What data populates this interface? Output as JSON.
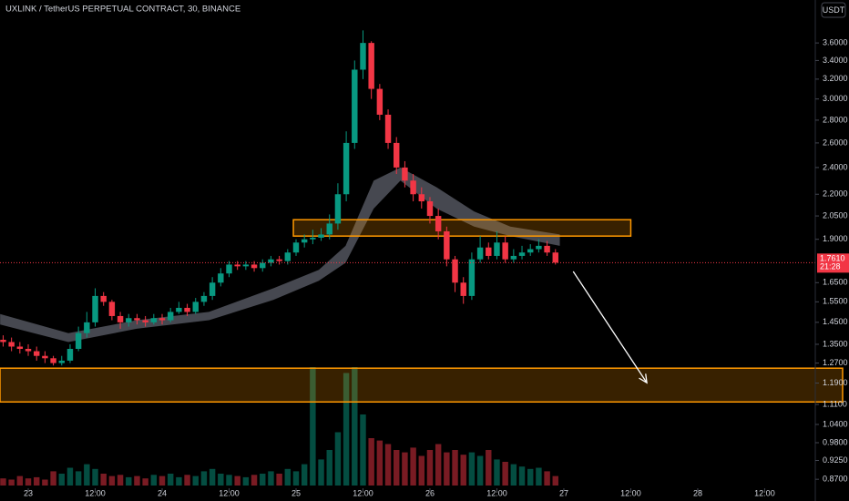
{
  "chart_data": {
    "type": "candlestick",
    "title": "UXLINK / TetherUS PERPETUAL CONTRACT, 30, BINANCE",
    "currency": "USDT",
    "log_scale": true,
    "up_color": "#089981",
    "down_color": "#f23645",
    "ylim": [
      0.845,
      4.14
    ],
    "yticks": [
      {
        "value": 3.6,
        "label": "3.6000"
      },
      {
        "value": 3.4,
        "label": "3.4000"
      },
      {
        "value": 3.2,
        "label": "3.2000"
      },
      {
        "value": 3.0,
        "label": "3.0000"
      },
      {
        "value": 2.8,
        "label": "2.8000"
      },
      {
        "value": 2.6,
        "label": "2.6000"
      },
      {
        "value": 2.4,
        "label": "2.4000"
      },
      {
        "value": 2.2,
        "label": "2.2000"
      },
      {
        "value": 2.05,
        "label": "2.0500"
      },
      {
        "value": 1.9,
        "label": "1.9000"
      },
      {
        "value": 1.65,
        "label": "1.6500"
      },
      {
        "value": 1.55,
        "label": "1.5500"
      },
      {
        "value": 1.45,
        "label": "1.4500"
      },
      {
        "value": 1.35,
        "label": "1.3500"
      },
      {
        "value": 1.27,
        "label": "1.2700"
      },
      {
        "value": 1.19,
        "label": "1.1900"
      },
      {
        "value": 1.11,
        "label": "1.1100"
      },
      {
        "value": 1.04,
        "label": "1.0400"
      },
      {
        "value": 0.98,
        "label": "0.9800"
      },
      {
        "value": 0.925,
        "label": "0.9250"
      },
      {
        "value": 0.87,
        "label": "0.8700"
      }
    ],
    "xlim": [
      22.789,
      28.878
    ],
    "xticks": [
      23,
      {
        "value": 23.5,
        "label": "12:00"
      },
      24,
      {
        "value": 24.5,
        "label": "12:00"
      },
      25,
      {
        "value": 25.5,
        "label": "12:00"
      },
      26,
      {
        "value": 26.5,
        "label": "12:00"
      },
      27,
      {
        "value": 27.5,
        "label": "12:00"
      },
      28,
      {
        "value": 28.5,
        "label": "12:00"
      }
    ],
    "x": [
      22.8125,
      22.875,
      22.9375,
      23,
      23.0625,
      23.125,
      23.1875,
      23.25,
      23.3125,
      23.375,
      23.4375,
      23.5,
      23.5625,
      23.625,
      23.6875,
      23.75,
      23.8125,
      23.875,
      23.9375,
      24,
      24.0625,
      24.125,
      24.1875,
      24.25,
      24.3125,
      24.375,
      24.4375,
      24.5,
      24.5625,
      24.625,
      24.6875,
      24.75,
      24.8125,
      24.875,
      24.9375,
      25,
      25.0625,
      25.125,
      25.1875,
      25.25,
      25.3125,
      25.375,
      25.4375,
      25.5,
      25.5625,
      25.625,
      25.6875,
      25.75,
      25.8125,
      25.875,
      25.9375,
      26,
      26.0625,
      26.125,
      26.1875,
      26.25,
      26.3125,
      26.375,
      26.4375,
      26.5,
      26.5625,
      26.625,
      26.6875,
      26.75,
      26.8125,
      26.875,
      26.9375
    ],
    "open": [
      1.37,
      1.36,
      1.34,
      1.33,
      1.32,
      1.3,
      1.29,
      1.27,
      1.28,
      1.33,
      1.4,
      1.45,
      1.58,
      1.55,
      1.48,
      1.45,
      1.47,
      1.46,
      1.45,
      1.47,
      1.46,
      1.5,
      1.52,
      1.5,
      1.55,
      1.58,
      1.65,
      1.7,
      1.75,
      1.74,
      1.75,
      1.73,
      1.76,
      1.78,
      1.77,
      1.82,
      1.88,
      1.9,
      1.91,
      1.93,
      2.0,
      2.2,
      2.6,
      3.3,
      3.6,
      3.1,
      2.85,
      2.6,
      2.4,
      2.3,
      2.2,
      2.15,
      2.05,
      1.95,
      1.78,
      1.65,
      1.58,
      1.78,
      1.85,
      1.8,
      1.88,
      1.78,
      1.8,
      1.82,
      1.84,
      1.86,
      1.82
    ],
    "high": [
      1.39,
      1.38,
      1.36,
      1.35,
      1.34,
      1.32,
      1.3,
      1.3,
      1.35,
      1.43,
      1.5,
      1.62,
      1.6,
      1.56,
      1.5,
      1.49,
      1.49,
      1.48,
      1.49,
      1.49,
      1.52,
      1.55,
      1.54,
      1.57,
      1.6,
      1.68,
      1.73,
      1.77,
      1.77,
      1.77,
      1.77,
      1.78,
      1.8,
      1.8,
      1.84,
      1.9,
      1.93,
      1.96,
      1.97,
      2.06,
      2.28,
      2.7,
      3.4,
      3.75,
      3.62,
      3.15,
      2.9,
      2.65,
      2.45,
      2.35,
      2.25,
      2.18,
      2.1,
      1.98,
      1.8,
      1.68,
      1.82,
      1.92,
      1.88,
      1.95,
      1.92,
      1.84,
      1.86,
      1.87,
      1.9,
      1.89,
      1.84
    ],
    "low": [
      1.34,
      1.32,
      1.31,
      1.3,
      1.28,
      1.27,
      1.26,
      1.26,
      1.27,
      1.32,
      1.38,
      1.43,
      1.53,
      1.46,
      1.42,
      1.43,
      1.44,
      1.43,
      1.44,
      1.44,
      1.45,
      1.49,
      1.48,
      1.49,
      1.53,
      1.56,
      1.63,
      1.68,
      1.72,
      1.72,
      1.71,
      1.71,
      1.74,
      1.75,
      1.75,
      1.8,
      1.85,
      1.87,
      1.89,
      1.9,
      1.96,
      2.15,
      2.55,
      3.2,
      3.0,
      2.8,
      2.55,
      2.35,
      2.25,
      2.15,
      2.1,
      2.0,
      1.9,
      1.74,
      1.6,
      1.54,
      1.56,
      1.76,
      1.78,
      1.78,
      1.76,
      1.76,
      1.78,
      1.8,
      1.82,
      1.8,
      1.75
    ],
    "close": [
      1.36,
      1.34,
      1.33,
      1.32,
      1.3,
      1.29,
      1.27,
      1.28,
      1.33,
      1.4,
      1.45,
      1.58,
      1.55,
      1.48,
      1.45,
      1.47,
      1.46,
      1.45,
      1.47,
      1.46,
      1.5,
      1.52,
      1.5,
      1.55,
      1.58,
      1.65,
      1.7,
      1.75,
      1.74,
      1.75,
      1.73,
      1.76,
      1.78,
      1.77,
      1.82,
      1.88,
      1.9,
      1.91,
      1.93,
      2.0,
      2.2,
      2.6,
      3.3,
      3.6,
      3.1,
      2.85,
      2.6,
      2.4,
      2.3,
      2.2,
      2.15,
      2.05,
      1.95,
      1.78,
      1.65,
      1.58,
      1.78,
      1.85,
      1.8,
      1.88,
      1.78,
      1.8,
      1.82,
      1.84,
      1.86,
      1.82,
      1.761
    ],
    "volume": [
      6,
      5,
      8,
      6,
      7,
      5,
      12,
      10,
      15,
      12,
      18,
      14,
      10,
      8,
      9,
      7,
      8,
      6,
      9,
      8,
      10,
      7,
      9,
      8,
      12,
      14,
      10,
      9,
      8,
      7,
      9,
      10,
      12,
      10,
      14,
      12,
      18,
      100,
      22,
      30,
      45,
      95,
      100,
      60,
      40,
      38,
      35,
      30,
      28,
      32,
      25,
      30,
      35,
      28,
      30,
      26,
      28,
      25,
      30,
      22,
      20,
      18,
      16,
      14,
      15,
      12,
      8
    ],
    "volume_lim": [
      0,
      100
    ],
    "ribbon": {
      "x": [
        22.79,
        23.3,
        23.81,
        24.35,
        24.83,
        25.17,
        25.37,
        25.58,
        25.78,
        26.05,
        26.33,
        26.6,
        26.97
      ],
      "upper": [
        1.49,
        1.4,
        1.46,
        1.5,
        1.62,
        1.72,
        1.86,
        2.3,
        2.4,
        2.25,
        2.08,
        1.98,
        1.93
      ],
      "lower": [
        1.44,
        1.36,
        1.42,
        1.46,
        1.56,
        1.66,
        1.76,
        2.1,
        2.3,
        2.1,
        1.98,
        1.92,
        1.86
      ]
    },
    "zones": [
      {
        "x": [
          24.98,
          27.5
        ],
        "y": [
          1.92,
          2.025
        ]
      },
      {
        "x": [
          22.789,
          28.878
        ],
        "y": [
          1.119,
          1.249
        ]
      }
    ],
    "arrow": {
      "x": [
        27.07,
        27.62
      ],
      "y": [
        1.711,
        1.191
      ]
    },
    "last_price": {
      "value": 1.761,
      "label": "1.7610"
    },
    "countdown": "21:28"
  }
}
